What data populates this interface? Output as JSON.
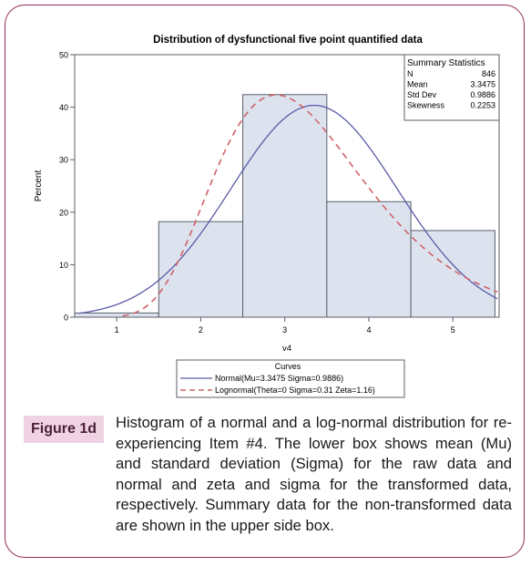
{
  "figure": {
    "label": "Figure 1d",
    "caption": "Histogram of a normal and a log-normal distribution for re-experiencing Item #4. The lower box shows mean (Mu) and standard deviation (Sigma) for the raw data and normal and zeta and sigma for the transformed data, respectively. Summary data for the non-transformed data are shown in the upper side box."
  },
  "chart_data": {
    "type": "bar",
    "title": "Distribution of dysfunctional five point quantified data",
    "xlabel": "v4",
    "ylabel": "Percent",
    "xlim": [
      0.5,
      5.55
    ],
    "ylim": [
      0,
      50
    ],
    "xticks": [
      "1",
      "2",
      "3",
      "4",
      "5"
    ],
    "yticks": [
      "0",
      "10",
      "20",
      "30",
      "40",
      "50"
    ],
    "categories": [
      "1",
      "2",
      "3",
      "4",
      "5"
    ],
    "values": [
      0.8,
      18.2,
      42.4,
      22.0,
      16.5
    ],
    "bar_color": "#dce3ef",
    "bar_edge_color": "#5a5f6a",
    "summary": {
      "title": "Summary Statistics",
      "rows": [
        {
          "label": "N",
          "value": "846"
        },
        {
          "label": "Mean",
          "value": "3.3475"
        },
        {
          "label": "Std Dev",
          "value": "0.9886"
        },
        {
          "label": "Skewness",
          "value": "0.2253"
        }
      ]
    },
    "curves_legend": {
      "title": "Curves",
      "placement": "bottom"
    },
    "series": [
      {
        "name": "Normal(Mu=3.3475 Sigma=0.9886)",
        "kind": "normal",
        "color": "#5a5aa8",
        "dash": "solid",
        "mu": 3.3475,
        "sigma": 0.9886
      },
      {
        "name": "Lognormal(Theta=0 Sigma=0.31 Zeta=1.16)",
        "kind": "lognormal",
        "color": "#d0626a",
        "dash": "dashed",
        "theta": 0,
        "sigma": 0.31,
        "zeta": 1.16
      }
    ]
  }
}
